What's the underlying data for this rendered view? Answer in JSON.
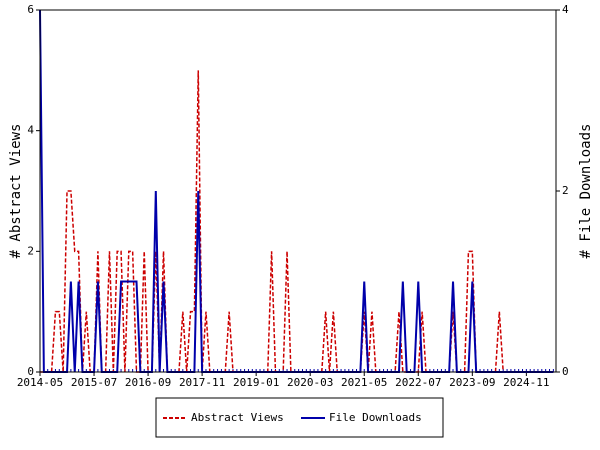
{
  "chart_data": {
    "type": "line",
    "x": [
      "2014-05",
      "2014-06",
      "2014-07",
      "2014-08",
      "2014-09",
      "2014-10",
      "2014-11",
      "2014-12",
      "2015-01",
      "2015-02",
      "2015-03",
      "2015-04",
      "2015-05",
      "2015-06",
      "2015-07",
      "2015-08",
      "2015-09",
      "2015-10",
      "2015-11",
      "2015-12",
      "2016-01",
      "2016-02",
      "2016-03",
      "2016-04",
      "2016-05",
      "2016-06",
      "2016-07",
      "2016-08",
      "2016-09",
      "2016-10",
      "2016-11",
      "2016-12",
      "2017-01",
      "2017-02",
      "2017-03",
      "2017-04",
      "2017-05",
      "2017-06",
      "2017-07",
      "2017-08",
      "2017-09",
      "2017-10",
      "2017-11",
      "2017-12",
      "2018-01",
      "2018-02",
      "2018-03",
      "2018-04",
      "2018-05",
      "2018-06",
      "2018-07",
      "2018-08",
      "2018-09",
      "2018-10",
      "2018-11",
      "2018-12",
      "2019-01",
      "2019-02",
      "2019-03",
      "2019-04",
      "2019-05",
      "2019-06",
      "2019-07",
      "2019-08",
      "2019-09",
      "2019-10",
      "2019-11",
      "2019-12",
      "2020-01",
      "2020-02",
      "2020-03",
      "2020-04",
      "2020-05",
      "2020-06",
      "2020-07",
      "2020-08",
      "2020-09",
      "2020-10",
      "2020-11",
      "2020-12",
      "2021-01",
      "2021-02",
      "2021-03",
      "2021-04",
      "2021-05",
      "2021-06",
      "2021-07",
      "2021-08",
      "2021-09",
      "2021-10",
      "2021-11",
      "2021-12",
      "2022-01",
      "2022-02",
      "2022-03",
      "2022-04",
      "2022-05",
      "2022-06",
      "2022-07",
      "2022-08",
      "2022-09",
      "2022-10",
      "2022-11",
      "2022-12",
      "2023-01",
      "2023-02",
      "2023-03",
      "2023-04",
      "2023-05",
      "2023-06",
      "2023-07",
      "2023-08",
      "2023-09",
      "2023-10",
      "2023-11",
      "2023-12",
      "2024-01",
      "2024-02",
      "2024-03",
      "2024-04",
      "2024-05",
      "2024-06",
      "2024-07",
      "2024-08",
      "2024-09",
      "2024-10",
      "2024-11",
      "2024-12",
      "2025-01",
      "2025-02",
      "2025-03",
      "2025-04",
      "2025-05",
      "2025-06"
    ],
    "xticks": [
      "2014-05",
      "2015-07",
      "2016-09",
      "2017-11",
      "2019-01",
      "2020-03",
      "2021-05",
      "2022-07",
      "2023-09",
      "2024-11"
    ],
    "ylabel": "# Abstract Views",
    "y2label": "# File Downloads",
    "ylim": [
      0,
      6
    ],
    "yticks": [
      0,
      2,
      4,
      6
    ],
    "y2lim": [
      0,
      4
    ],
    "y2ticks": [
      0,
      2,
      4
    ],
    "legend": "bottom",
    "series": [
      {
        "name": "Abstract Views",
        "color": "#cc0000",
        "dash": true,
        "values": [
          0,
          0,
          0,
          0,
          1,
          1,
          0,
          3,
          3,
          2,
          2,
          0,
          1,
          0,
          0,
          2,
          0,
          0,
          2,
          0,
          2,
          2,
          0,
          2,
          2,
          0,
          0,
          2,
          0,
          0,
          2,
          0,
          2,
          0,
          0,
          0,
          0,
          1,
          0,
          1,
          1,
          5,
          0,
          1,
          0,
          0,
          0,
          0,
          0,
          1,
          0,
          0,
          0,
          0,
          0,
          0,
          0,
          0,
          0,
          0,
          2,
          0,
          0,
          0,
          2,
          0,
          0,
          0,
          0,
          0,
          0,
          0,
          0,
          0,
          1,
          0,
          1,
          0,
          0,
          0,
          0,
          0,
          0,
          0,
          1,
          0,
          1,
          0,
          0,
          0,
          0,
          0,
          0,
          1,
          0,
          0,
          0,
          0,
          0,
          1,
          0,
          0,
          0,
          0,
          0,
          0,
          0,
          1,
          0,
          0,
          0,
          2,
          2,
          0,
          0,
          0,
          0,
          0,
          0,
          1,
          0,
          0,
          0,
          0,
          0,
          0,
          0,
          0,
          0,
          0,
          0,
          0,
          0,
          0
        ]
      },
      {
        "name": "File Downloads",
        "color": "#0000aa",
        "axis": "y2",
        "values": [
          4,
          0,
          0,
          0,
          0,
          0,
          0,
          0,
          1,
          0,
          1,
          0,
          0,
          0,
          0,
          1,
          0,
          0,
          0,
          0,
          0,
          1,
          1,
          1,
          1,
          1,
          0,
          0,
          0,
          0,
          2,
          0,
          1,
          0,
          0,
          0,
          0,
          0,
          0,
          0,
          0,
          2,
          0,
          0,
          0,
          0,
          0,
          0,
          0,
          0,
          0,
          0,
          0,
          0,
          0,
          0,
          0,
          0,
          0,
          0,
          0,
          0,
          0,
          0,
          0,
          0,
          0,
          0,
          0,
          0,
          0,
          0,
          0,
          0,
          0,
          0,
          0,
          0,
          0,
          0,
          0,
          0,
          0,
          0,
          1,
          0,
          0,
          0,
          0,
          0,
          0,
          0,
          0,
          0,
          1,
          0,
          0,
          0,
          1,
          0,
          0,
          0,
          0,
          0,
          0,
          0,
          0,
          1,
          0,
          0,
          0,
          0,
          1,
          0,
          0,
          0,
          0,
          0,
          0,
          0,
          0,
          0,
          0,
          0,
          0,
          0,
          0,
          0,
          0,
          0,
          0,
          0,
          0,
          0
        ]
      }
    ]
  }
}
